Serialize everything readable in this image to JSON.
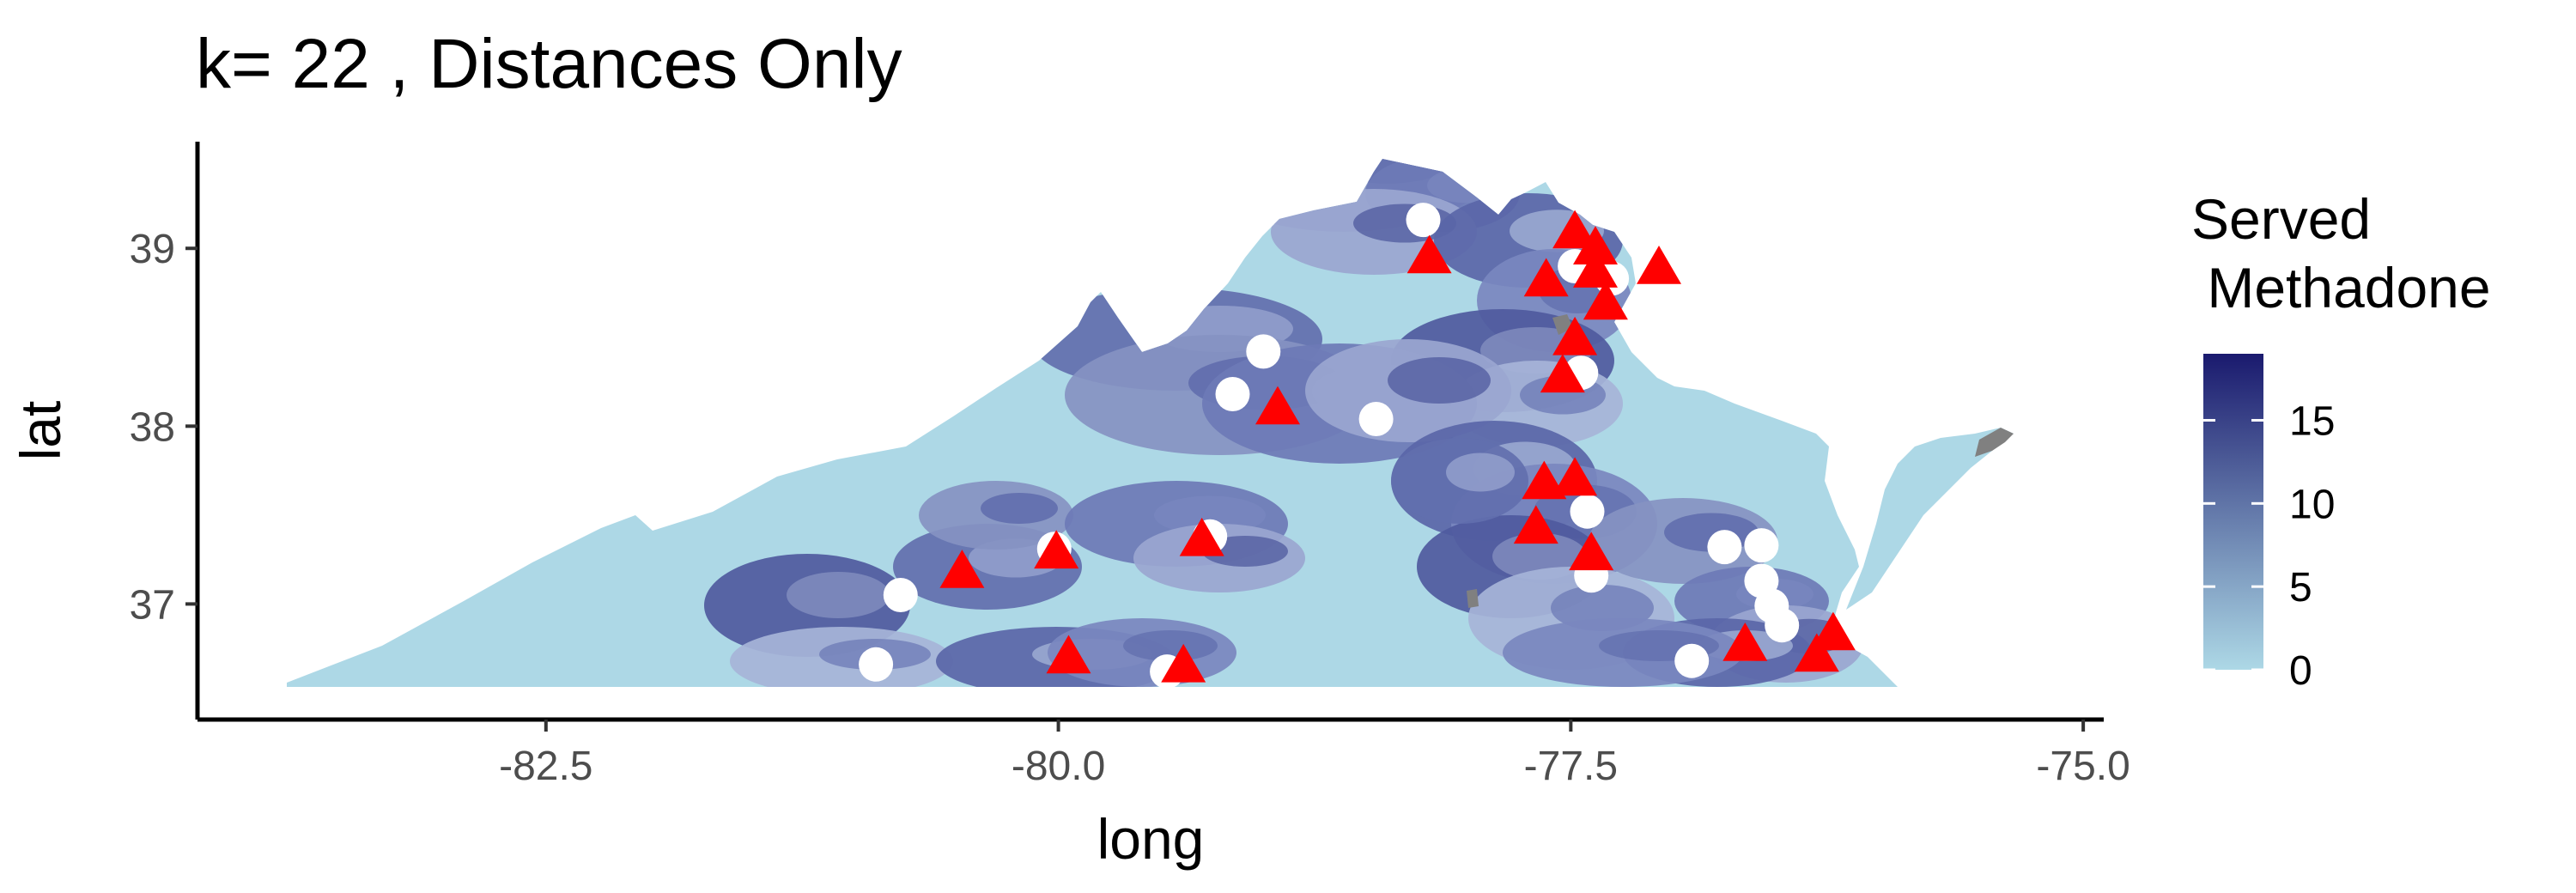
{
  "title": "k= 22 , Distances Only",
  "chart_data": {
    "type": "map",
    "title": "k= 22 , Distances Only",
    "xlabel": "long",
    "ylabel": "lat",
    "xlim": [
      -84.2,
      -74.9
    ],
    "ylim": [
      36.35,
      39.6
    ],
    "x_ticks": [
      {
        "value": -82.5,
        "label": "-82.5"
      },
      {
        "value": -80.0,
        "label": "-80.0"
      },
      {
        "value": -77.5,
        "label": "-77.5"
      },
      {
        "value": -75.0,
        "label": "-75.0"
      }
    ],
    "y_ticks": [
      {
        "value": 37,
        "label": "37"
      },
      {
        "value": 38,
        "label": "38"
      },
      {
        "value": 39,
        "label": "39"
      }
    ],
    "legend": {
      "title_lines": [
        "Served",
        " Methadone"
      ],
      "range": [
        0,
        19
      ],
      "ticks": [
        {
          "value": 0,
          "label": "0"
        },
        {
          "value": 5,
          "label": "5"
        },
        {
          "value": 10,
          "label": "10"
        },
        {
          "value": 15,
          "label": "15"
        }
      ],
      "low_color": "#add8e6",
      "high_color": "#1a1a6e"
    },
    "base_fill": "#add8e6",
    "facility_markers": {
      "shape": "circle",
      "color": "#ffffff",
      "points": [
        [
          -78.22,
          39.16
        ],
        [
          -79.0,
          38.42
        ],
        [
          -79.15,
          38.18
        ],
        [
          -78.45,
          38.04
        ],
        [
          -77.45,
          38.3
        ],
        [
          -79.26,
          37.38
        ],
        [
          -80.02,
          37.31
        ],
        [
          -80.77,
          37.05
        ],
        [
          -80.89,
          36.66
        ],
        [
          -79.47,
          36.62
        ],
        [
          -77.42,
          37.52
        ],
        [
          -77.4,
          37.16
        ],
        [
          -76.91,
          36.68
        ],
        [
          -76.75,
          37.32
        ],
        [
          -76.57,
          37.33
        ],
        [
          -76.57,
          37.13
        ],
        [
          -76.52,
          36.99
        ],
        [
          -76.47,
          36.88
        ],
        [
          -77.48,
          38.9
        ],
        [
          -77.3,
          38.83
        ]
      ]
    },
    "selected_markers": {
      "shape": "triangle",
      "color": "#ff0000",
      "points": [
        [
          -78.19,
          38.95
        ],
        [
          -77.48,
          39.09
        ],
        [
          -77.38,
          39.0
        ],
        [
          -77.38,
          38.87
        ],
        [
          -77.07,
          38.89
        ],
        [
          -77.62,
          38.82
        ],
        [
          -77.33,
          38.69
        ],
        [
          -77.48,
          38.49
        ],
        [
          -77.54,
          38.28
        ],
        [
          -78.93,
          38.1
        ],
        [
          -77.63,
          37.68
        ],
        [
          -77.48,
          37.7
        ],
        [
          -77.67,
          37.43
        ],
        [
          -77.4,
          37.28
        ],
        [
          -79.3,
          37.36
        ],
        [
          -80.01,
          37.29
        ],
        [
          -80.47,
          37.18
        ],
        [
          -79.95,
          36.7
        ],
        [
          -79.39,
          36.65
        ],
        [
          -76.65,
          36.77
        ],
        [
          -76.3,
          36.71
        ],
        [
          -76.22,
          36.83
        ]
      ]
    }
  }
}
